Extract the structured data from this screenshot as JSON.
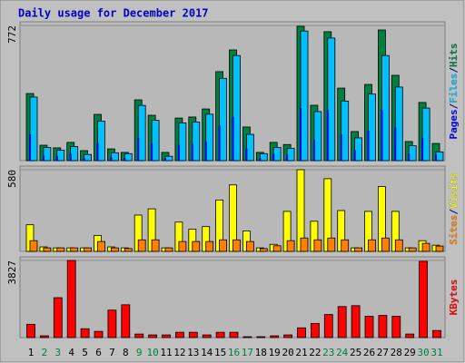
{
  "chart_data": {
    "type": "bar",
    "title": "Daily usage for December 2017",
    "categories": [
      "1",
      "2",
      "3",
      "4",
      "5",
      "6",
      "7",
      "8",
      "9",
      "10",
      "11",
      "12",
      "13",
      "14",
      "15",
      "16",
      "17",
      "18",
      "19",
      "20",
      "21",
      "22",
      "23",
      "24",
      "25",
      "26",
      "27",
      "28",
      "29",
      "30",
      "31"
    ],
    "weekend_color": "#008040",
    "weekends": [
      2,
      3,
      9,
      10,
      16,
      17,
      23,
      24,
      30,
      31
    ],
    "separator": "/",
    "panels": [
      {
        "ylim": [
          0,
          772
        ],
        "yticks": [
          772
        ],
        "series": [
          {
            "name": "Hits",
            "color": "#008040",
            "values": [
              383,
              88,
              73,
              104,
              57,
              264,
              67,
              47,
              347,
              259,
              47,
              243,
              249,
              295,
              508,
              632,
              192,
              47,
              104,
              92,
              767,
              316,
              736,
              414,
              166,
              435,
              746,
              487,
              109,
              332,
              98
            ]
          },
          {
            "name": "Files",
            "color": "#00c0ff",
            "values": [
              363,
              75,
              60,
              80,
              35,
              225,
              45,
              40,
              315,
              230,
              25,
              215,
              220,
              265,
              470,
              600,
              150,
              40,
              75,
              70,
              740,
              280,
              700,
              340,
              130,
              380,
              600,
              420,
              85,
              300,
              50
            ]
          },
          {
            "name": "Pages",
            "color": "#0000ff",
            "values": [
              150,
              30,
              25,
              40,
              15,
              100,
              20,
              15,
              130,
              100,
              15,
              90,
              95,
              110,
              200,
              250,
              70,
              15,
              40,
              35,
              300,
              120,
              290,
              150,
              60,
              170,
              290,
              190,
              40,
              130,
              35
            ]
          }
        ]
      },
      {
        "ylim": [
          0,
          580
        ],
        "yticks": [
          580
        ],
        "series": [
          {
            "name": "Visits",
            "color": "#ffff00",
            "values": [
              189,
              32,
              25,
              25,
              25,
              113,
              32,
              25,
              258,
              302,
              25,
              208,
              157,
              176,
              365,
              472,
              145,
              25,
              50,
              284,
              580,
              214,
              516,
              290,
              25,
              284,
              460,
              284,
              25,
              76,
              44
            ]
          },
          {
            "name": "Sites",
            "color": "#ff8000",
            "values": [
              76,
              25,
              25,
              25,
              25,
              70,
              25,
              20,
              82,
              82,
              25,
              70,
              70,
              70,
              82,
              82,
              70,
              20,
              40,
              76,
              95,
              82,
              95,
              82,
              25,
              82,
              95,
              82,
              25,
              57,
              38
            ]
          }
        ]
      },
      {
        "ylim": [
          0,
          3827
        ],
        "yticks": [
          3827
        ],
        "series": [
          {
            "name": "KBytes",
            "color": "#ff0000",
            "values": [
              660,
              88,
              1980,
              3827,
              440,
              308,
              1364,
              1628,
              176,
              132,
              132,
              264,
              264,
              132,
              264,
              264,
              44,
              44,
              88,
              132,
              484,
              704,
              1144,
              1540,
              1584,
              1056,
              1100,
              1056,
              176,
              3784,
              352
            ]
          }
        ]
      }
    ]
  }
}
